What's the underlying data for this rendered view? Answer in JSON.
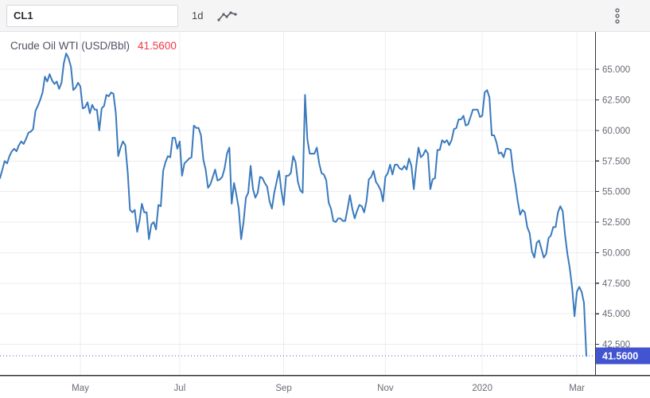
{
  "toolbar": {
    "symbol_value": "CL1",
    "interval_label": "1d",
    "chart_type_icon": "line-chart-icon",
    "menu_icon": "kebab-menu-icon"
  },
  "legend": {
    "title": "Crude Oil WTI (USD/Bbl)",
    "price": "41.5600"
  },
  "colors": {
    "series_line": "#3a7abd",
    "grid": "#ececec",
    "axis_border": "#30333a",
    "axis_text": "#686b76",
    "price_line": "#4254d0",
    "price_badge_bg": "#4254d0",
    "price_badge_text": "#ffffff",
    "legend_price": "#f23645",
    "icon_gray": "#5a5d66"
  },
  "chart_data": {
    "type": "line",
    "title": "Crude Oil WTI (USD/Bbl)",
    "symbol": "CL1",
    "interval": "1d",
    "last_price": 41.56,
    "last_price_label": "41.5600",
    "ylim": [
      40,
      68
    ],
    "grid": true,
    "legend_position": "top-left",
    "y_ticks": [
      {
        "value": 65.0,
        "label": "65.000"
      },
      {
        "value": 62.5,
        "label": "62.500"
      },
      {
        "value": 60.0,
        "label": "60.000"
      },
      {
        "value": 57.5,
        "label": "57.500"
      },
      {
        "value": 55.0,
        "label": "55.000"
      },
      {
        "value": 52.5,
        "label": "52.500"
      },
      {
        "value": 50.0,
        "label": "50.000"
      },
      {
        "value": 47.5,
        "label": "47.500"
      },
      {
        "value": 45.0,
        "label": "45.000"
      },
      {
        "value": 42.5,
        "label": "42.500"
      }
    ],
    "x_ticks": [
      {
        "label": "May",
        "i": 34
      },
      {
        "label": "Jul",
        "i": 76
      },
      {
        "label": "Sep",
        "i": 120
      },
      {
        "label": "Nov",
        "i": 163
      },
      {
        "label": "2020",
        "i": 204
      },
      {
        "label": "Mar",
        "i": 244
      }
    ],
    "values": [
      56.1,
      56.8,
      57.5,
      57.3,
      57.9,
      58.3,
      58.5,
      58.3,
      58.8,
      59.1,
      58.9,
      59.3,
      59.8,
      59.9,
      60.1,
      61.6,
      62.0,
      62.5,
      63.1,
      64.4,
      64.0,
      64.6,
      64.1,
      63.8,
      64.0,
      63.4,
      63.9,
      65.5,
      66.3,
      65.9,
      65.2,
      63.3,
      63.5,
      63.9,
      63.6,
      61.8,
      61.9,
      62.3,
      61.4,
      62.1,
      61.7,
      61.7,
      60.0,
      61.8,
      62.0,
      62.9,
      62.8,
      63.1,
      63.0,
      61.4,
      57.9,
      58.6,
      59.1,
      58.8,
      56.6,
      53.5,
      53.3,
      53.5,
      51.7,
      52.6,
      54.0,
      53.3,
      53.3,
      51.1,
      52.3,
      52.5,
      51.9,
      53.9,
      53.8,
      56.7,
      57.4,
      57.9,
      57.8,
      59.4,
      59.4,
      58.5,
      59.1,
      56.3,
      57.3,
      57.5,
      57.7,
      57.8,
      60.4,
      60.2,
      60.2,
      59.6,
      57.6,
      56.8,
      55.3,
      55.6,
      56.2,
      56.8,
      55.9,
      56.0,
      56.2,
      56.9,
      58.1,
      58.6,
      54.0,
      55.7,
      54.7,
      53.6,
      51.1,
      52.5,
      54.5,
      54.9,
      57.1,
      55.2,
      54.5,
      54.9,
      56.2,
      56.1,
      55.7,
      55.4,
      54.2,
      53.6,
      54.9,
      55.8,
      56.7,
      55.1,
      53.9,
      56.3,
      56.3,
      56.5,
      57.9,
      57.4,
      55.8,
      55.1,
      54.9,
      62.9,
      59.3,
      58.1,
      58.1,
      58.1,
      58.6,
      57.3,
      56.5,
      56.4,
      55.9,
      54.1,
      53.6,
      52.6,
      52.5,
      52.8,
      52.8,
      52.6,
      52.6,
      53.6,
      54.7,
      53.6,
      52.8,
      53.4,
      53.9,
      53.8,
      53.3,
      54.2,
      56.0,
      56.2,
      56.7,
      55.8,
      55.5,
      55.1,
      54.2,
      56.2,
      56.5,
      57.2,
      56.4,
      57.2,
      57.2,
      56.9,
      56.8,
      57.1,
      56.8,
      57.7,
      57.1,
      55.2,
      57.0,
      58.6,
      57.8,
      58.0,
      58.4,
      58.1,
      55.2,
      56.0,
      56.1,
      58.4,
      58.4,
      59.2,
      59.0,
      59.2,
      58.8,
      59.2,
      60.1,
      60.2,
      60.9,
      60.9,
      61.2,
      60.4,
      60.5,
      61.1,
      61.7,
      61.7,
      61.7,
      61.1,
      61.2,
      63.1,
      63.3,
      62.7,
      59.6,
      59.6,
      59.0,
      58.1,
      58.2,
      57.8,
      58.5,
      58.5,
      58.4,
      56.7,
      55.6,
      54.2,
      53.1,
      53.5,
      53.3,
      52.1,
      51.6,
      50.1,
      49.6,
      50.8,
      51.0,
      50.3,
      49.6,
      49.9,
      51.2,
      51.4,
      52.1,
      52.1,
      53.3,
      53.8,
      53.4,
      51.4,
      49.9,
      48.7,
      47.1,
      44.8,
      46.8,
      47.2,
      46.8,
      45.9,
      41.56
    ]
  }
}
